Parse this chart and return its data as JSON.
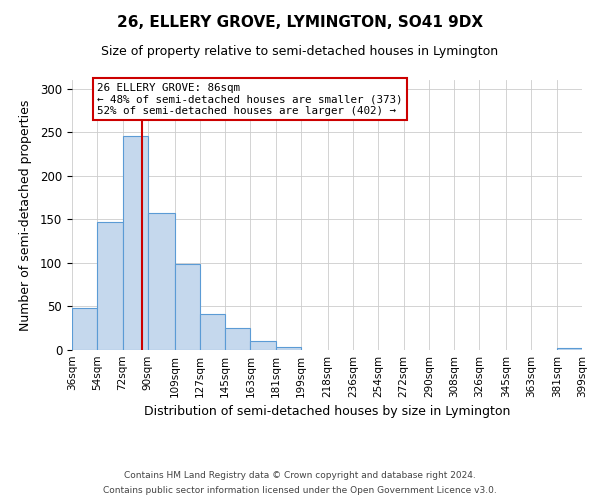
{
  "title": "26, ELLERY GROVE, LYMINGTON, SO41 9DX",
  "subtitle": "Size of property relative to semi-detached houses in Lymington",
  "xlabel": "Distribution of semi-detached houses by size in Lymington",
  "ylabel": "Number of semi-detached properties",
  "bin_edges": [
    36,
    54,
    72,
    90,
    109,
    127,
    145,
    163,
    181,
    199,
    218,
    236,
    254,
    272,
    290,
    308,
    326,
    345,
    363,
    381,
    399
  ],
  "bar_heights": [
    48,
    147,
    246,
    157,
    99,
    41,
    25,
    10,
    4,
    0,
    0,
    0,
    0,
    0,
    0,
    0,
    0,
    0,
    0,
    2
  ],
  "bar_color": "#c5d8ed",
  "bar_edge_color": "#5b9bd5",
  "property_value": 86,
  "property_label": "26 ELLERY GROVE: 86sqm",
  "smaller_pct": 48,
  "smaller_count": 373,
  "larger_pct": 52,
  "larger_count": 402,
  "vline_color": "#cc0000",
  "annotation_box_edge_color": "#cc0000",
  "ylim": [
    0,
    310
  ],
  "yticks": [
    0,
    50,
    100,
    150,
    200,
    250,
    300
  ],
  "xtick_labels": [
    "36sqm",
    "54sqm",
    "72sqm",
    "90sqm",
    "109sqm",
    "127sqm",
    "145sqm",
    "163sqm",
    "181sqm",
    "199sqm",
    "218sqm",
    "236sqm",
    "254sqm",
    "272sqm",
    "290sqm",
    "308sqm",
    "326sqm",
    "345sqm",
    "363sqm",
    "381sqm",
    "399sqm"
  ],
  "footer_line1": "Contains HM Land Registry data © Crown copyright and database right 2024.",
  "footer_line2": "Contains public sector information licensed under the Open Government Licence v3.0.",
  "background_color": "#ffffff",
  "grid_color": "#cccccc"
}
